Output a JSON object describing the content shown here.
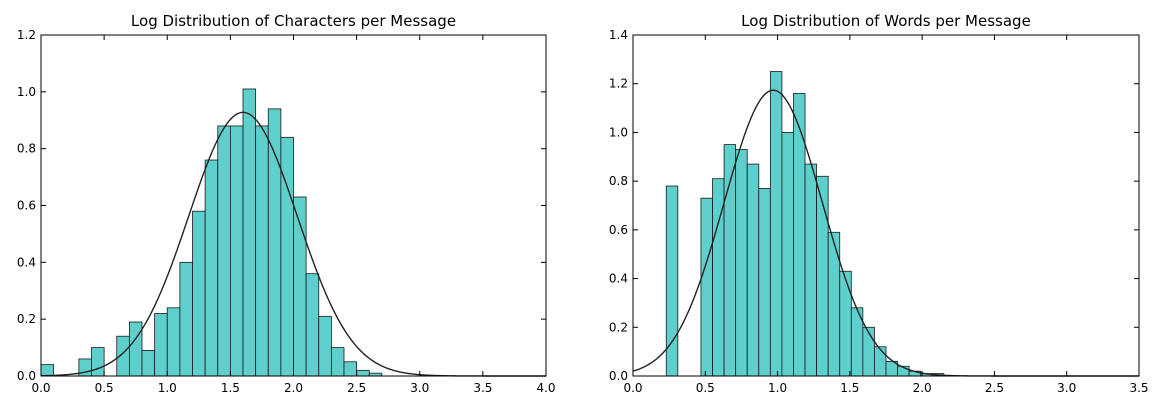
{
  "chart_data": [
    {
      "type": "histogram",
      "title": "Log Distribution of Characters per Message",
      "xlabel": "",
      "ylabel": "",
      "xlim": [
        0.0,
        4.0
      ],
      "ylim": [
        0.0,
        1.2
      ],
      "xticks": [
        "0.0",
        "0.5",
        "1.0",
        "1.5",
        "2.0",
        "2.5",
        "3.0",
        "3.5",
        "4.0"
      ],
      "yticks": [
        "0.0",
        "0.2",
        "0.4",
        "0.6",
        "0.8",
        "1.0",
        "1.2"
      ],
      "bin_edges": [
        0.0,
        0.1,
        0.2,
        0.3,
        0.4,
        0.5,
        0.6,
        0.7,
        0.8,
        0.9,
        1.0,
        1.1,
        1.2,
        1.3,
        1.4,
        1.5,
        1.6,
        1.7,
        1.8,
        1.9,
        2.0,
        2.1,
        2.2,
        2.3,
        2.4,
        2.5,
        2.6,
        2.7
      ],
      "values": [
        0.04,
        0.0,
        0.0,
        0.06,
        0.1,
        0.0,
        0.14,
        0.19,
        0.09,
        0.22,
        0.24,
        0.4,
        0.58,
        0.76,
        0.88,
        0.88,
        1.01,
        0.88,
        0.94,
        0.84,
        0.63,
        0.36,
        0.21,
        0.1,
        0.05,
        0.02,
        0.01
      ],
      "curve": {
        "type": "normal_pdf",
        "mean": 1.6,
        "sd": 0.43
      },
      "bar_color": "#5fcfcd",
      "edge_color": "#1a1a1a",
      "curve_color": "#222222"
    },
    {
      "type": "histogram",
      "title": "Log Distribution of Words per Message",
      "xlabel": "",
      "ylabel": "",
      "xlim": [
        0.0,
        3.5
      ],
      "ylim": [
        0.0,
        1.4
      ],
      "xticks": [
        "0.0",
        "0.5",
        "1.0",
        "1.5",
        "2.0",
        "2.5",
        "3.0",
        "3.5"
      ],
      "yticks": [
        "0.0",
        "0.2",
        "0.4",
        "0.6",
        "0.8",
        "1.0",
        "1.2",
        "1.4"
      ],
      "bin_edges": [
        0.23,
        0.31,
        0.39,
        0.47,
        0.55,
        0.63,
        0.71,
        0.79,
        0.87,
        0.95,
        1.03,
        1.11,
        1.19,
        1.27,
        1.35,
        1.43,
        1.51,
        1.59,
        1.67,
        1.75,
        1.83,
        1.91,
        1.99,
        2.07,
        2.15
      ],
      "values": [
        0.78,
        0.0,
        0.0,
        0.73,
        0.81,
        0.95,
        0.93,
        0.87,
        0.77,
        1.25,
        1.0,
        1.16,
        0.87,
        0.82,
        0.59,
        0.43,
        0.28,
        0.2,
        0.12,
        0.06,
        0.04,
        0.02,
        0.01,
        0.01
      ],
      "curve": {
        "type": "normal_pdf",
        "mean": 0.97,
        "sd": 0.34
      },
      "bar_color": "#5fcfcd",
      "edge_color": "#1a1a1a",
      "curve_color": "#222222"
    }
  ]
}
